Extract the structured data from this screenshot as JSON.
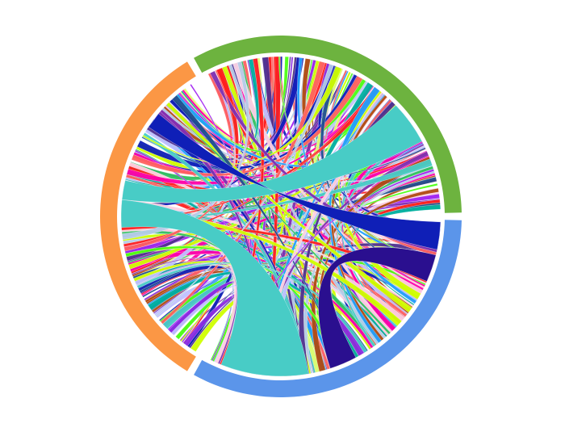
{
  "chart_data": {
    "type": "chord",
    "groups": [
      {
        "color": "#6db33f",
        "start_deg": -120,
        "end_deg": 0
      },
      {
        "color": "#5b95ea",
        "start_deg": 0,
        "end_deg": 120
      },
      {
        "color": "#fb9745",
        "start_deg": 120,
        "end_deg": 240
      }
    ],
    "major_chords": [
      {
        "color": "#48ccc6",
        "from": [
          80,
          112
        ],
        "to": [
          176,
          186
        ]
      },
      {
        "color": "#48ccc6",
        "from": [
          -44,
          -28
        ],
        "to": [
          186,
          193
        ]
      },
      {
        "color": "#2a0f8f",
        "from": [
          14,
          24
        ],
        "to": [
          62,
          72
        ]
      },
      {
        "color": "#0f1fb7",
        "from": [
          2,
          12
        ],
        "to": [
          -140,
          -146
        ]
      }
    ],
    "palette": [
      "#ff1f1f",
      "#0f1fb7",
      "#48ccc6",
      "#4cff12",
      "#a020f0",
      "#ff00aa",
      "#b5cbe8",
      "#1f4f8f",
      "#e0ff70",
      "#b04a10",
      "#30c060",
      "#7f2fb0",
      "#ffd0e0",
      "#20a0ff",
      "#d0ff00",
      "#8a2be2",
      "#00b0a0",
      "#ff6060",
      "#c0c0ff",
      "#503090"
    ]
  }
}
